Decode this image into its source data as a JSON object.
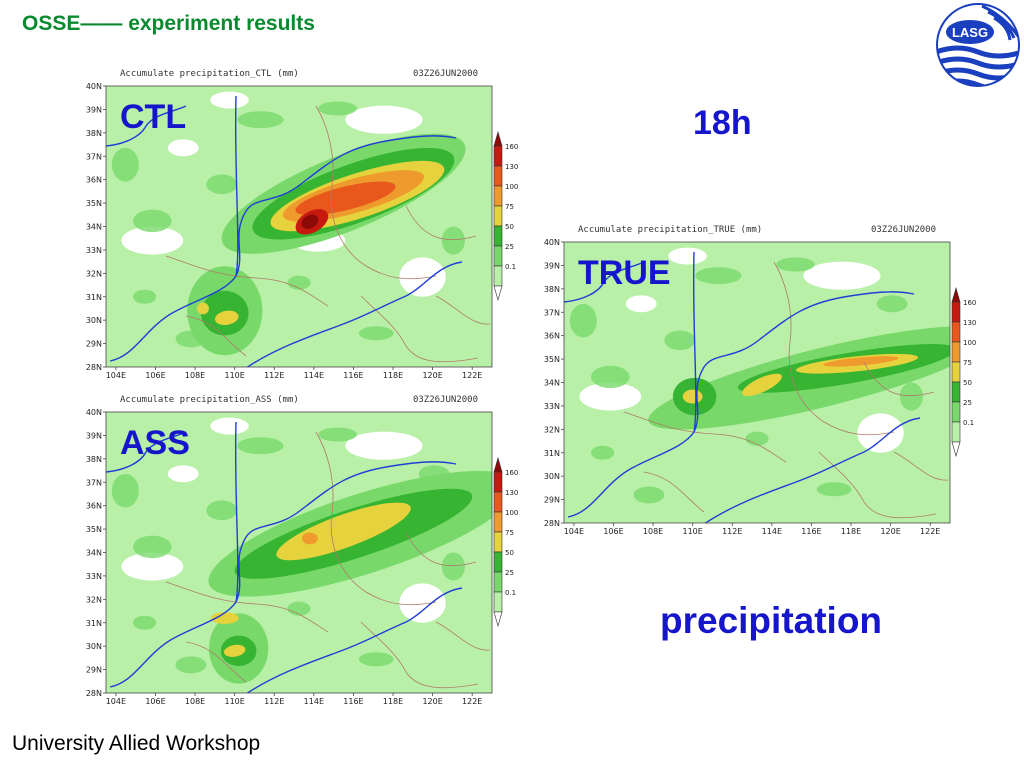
{
  "slide": {
    "title": "OSSE—— experiment results",
    "footer": "University Allied Workshop",
    "time_label": "18h",
    "variable_label": "precipitation",
    "logo_text": "LASG"
  },
  "colors": {
    "title": "#0a8a2e",
    "accent_text": "#1515cc",
    "river": "#1f3fd6",
    "province_border": "#b07a6a"
  },
  "chart_data": [
    {
      "type": "heatmap",
      "panel_label": "CTL",
      "title": "Accumulate precipitation_CTL (mm)",
      "timestamp": "03Z26JUN2000",
      "x_ticks": [
        "104E",
        "106E",
        "108E",
        "110E",
        "112E",
        "114E",
        "116E",
        "118E",
        "120E",
        "122E"
      ],
      "y_ticks": [
        "28N",
        "29N",
        "30N",
        "31N",
        "32N",
        "33N",
        "34N",
        "35N",
        "36N",
        "37N",
        "38N",
        "39N",
        "40N"
      ],
      "xlim": [
        103.5,
        123
      ],
      "ylim": [
        28,
        40
      ],
      "legend_levels": [
        "0.1",
        "25",
        "50",
        "75",
        "100",
        "130",
        "160"
      ],
      "legend_colors": [
        "#b9f0a8",
        "#78d96a",
        "#36b432",
        "#e6d23c",
        "#ee9a2c",
        "#e8581c",
        "#c61a10",
        "#8c0a08"
      ],
      "rain_cells": [
        {
          "x": 115.5,
          "y": 35.4,
          "rx": 6.6,
          "ry": 1.6,
          "rot": -22,
          "level": 1
        },
        {
          "x": 116.0,
          "y": 35.4,
          "rx": 5.4,
          "ry": 1.25,
          "rot": -20,
          "level": 2
        },
        {
          "x": 116.2,
          "y": 35.3,
          "rx": 4.6,
          "ry": 0.95,
          "rot": -18,
          "level": 3
        },
        {
          "x": 116.0,
          "y": 35.3,
          "rx": 3.7,
          "ry": 0.72,
          "rot": -16,
          "level": 4
        },
        {
          "x": 115.6,
          "y": 35.2,
          "rx": 2.6,
          "ry": 0.5,
          "rot": -14,
          "level": 5
        },
        {
          "x": 113.9,
          "y": 34.2,
          "rx": 0.9,
          "ry": 0.45,
          "rot": -30,
          "level": 6
        },
        {
          "x": 113.8,
          "y": 34.2,
          "rx": 0.45,
          "ry": 0.28,
          "rot": -30,
          "level": 7
        },
        {
          "x": 109.5,
          "y": 30.4,
          "rx": 1.9,
          "ry": 1.9,
          "rot": 0,
          "level": 1
        },
        {
          "x": 109.5,
          "y": 30.3,
          "rx": 1.2,
          "ry": 0.95,
          "rot": 0,
          "level": 2
        },
        {
          "x": 109.6,
          "y": 30.1,
          "rx": 0.6,
          "ry": 0.3,
          "rot": -10,
          "level": 3
        },
        {
          "x": 108.4,
          "y": 30.5,
          "rx": 0.3,
          "ry": 0.25,
          "rot": 0,
          "level": 3
        }
      ]
    },
    {
      "type": "heatmap",
      "panel_label": "ASS",
      "title": "Accumulate precipitation_ASS (mm)",
      "timestamp": "03Z26JUN2000",
      "x_ticks": [
        "104E",
        "106E",
        "108E",
        "110E",
        "112E",
        "114E",
        "116E",
        "118E",
        "120E",
        "122E"
      ],
      "y_ticks": [
        "28N",
        "29N",
        "30N",
        "31N",
        "32N",
        "33N",
        "34N",
        "35N",
        "36N",
        "37N",
        "38N",
        "39N",
        "40N"
      ],
      "xlim": [
        103.5,
        123
      ],
      "ylim": [
        28,
        40
      ],
      "legend_levels": [
        "0.1",
        "25",
        "50",
        "75",
        "100",
        "130",
        "160"
      ],
      "legend_colors": [
        "#b9f0a8",
        "#78d96a",
        "#36b432",
        "#e6d23c",
        "#ee9a2c",
        "#e8581c",
        "#c61a10",
        "#8c0a08"
      ],
      "rain_cells": [
        {
          "x": 116.5,
          "y": 34.8,
          "rx": 8.2,
          "ry": 1.7,
          "rot": -18,
          "level": 1
        },
        {
          "x": 116.0,
          "y": 34.8,
          "rx": 6.3,
          "ry": 1.05,
          "rot": -18,
          "level": 2
        },
        {
          "x": 115.5,
          "y": 34.9,
          "rx": 3.6,
          "ry": 0.7,
          "rot": -20,
          "level": 3
        },
        {
          "x": 113.8,
          "y": 34.6,
          "rx": 0.4,
          "ry": 0.25,
          "rot": 0,
          "level": 4
        },
        {
          "x": 110.2,
          "y": 29.9,
          "rx": 1.5,
          "ry": 1.5,
          "rot": 0,
          "level": 1
        },
        {
          "x": 110.2,
          "y": 29.8,
          "rx": 0.9,
          "ry": 0.65,
          "rot": 0,
          "level": 2
        },
        {
          "x": 110.0,
          "y": 29.8,
          "rx": 0.55,
          "ry": 0.25,
          "rot": -10,
          "level": 3
        },
        {
          "x": 109.5,
          "y": 31.2,
          "rx": 0.7,
          "ry": 0.25,
          "rot": 0,
          "level": 3
        }
      ]
    },
    {
      "type": "heatmap",
      "panel_label": "TRUE",
      "title": "Accumulate precipitation_TRUE (mm)",
      "timestamp": "03Z26JUN2000",
      "x_ticks": [
        "104E",
        "106E",
        "108E",
        "110E",
        "112E",
        "114E",
        "116E",
        "118E",
        "120E",
        "122E"
      ],
      "y_ticks": [
        "28N",
        "29N",
        "30N",
        "31N",
        "32N",
        "33N",
        "34N",
        "35N",
        "36N",
        "37N",
        "38N",
        "39N",
        "40N"
      ],
      "xlim": [
        103.5,
        123
      ],
      "ylim": [
        28,
        40
      ],
      "legend_levels": [
        "0.1",
        "25",
        "50",
        "75",
        "100",
        "130",
        "160"
      ],
      "legend_colors": [
        "#b9f0a8",
        "#78d96a",
        "#36b432",
        "#e6d23c",
        "#ee9a2c",
        "#e8581c",
        "#c61a10",
        "#8c0a08"
      ],
      "rain_cells": [
        {
          "x": 116.5,
          "y": 34.2,
          "rx": 9.0,
          "ry": 1.25,
          "rot": -14,
          "level": 1
        },
        {
          "x": 117.8,
          "y": 34.6,
          "rx": 5.6,
          "ry": 0.65,
          "rot": -10,
          "level": 2
        },
        {
          "x": 118.3,
          "y": 34.8,
          "rx": 3.1,
          "ry": 0.32,
          "rot": -6,
          "level": 3
        },
        {
          "x": 118.5,
          "y": 34.9,
          "rx": 1.9,
          "ry": 0.17,
          "rot": -5,
          "level": 4
        },
        {
          "x": 113.5,
          "y": 33.9,
          "rx": 1.1,
          "ry": 0.3,
          "rot": -25,
          "level": 3
        },
        {
          "x": 110.1,
          "y": 33.4,
          "rx": 1.1,
          "ry": 0.8,
          "rot": 0,
          "level": 2
        },
        {
          "x": 110.0,
          "y": 33.4,
          "rx": 0.5,
          "ry": 0.3,
          "rot": 0,
          "level": 3
        }
      ]
    }
  ]
}
